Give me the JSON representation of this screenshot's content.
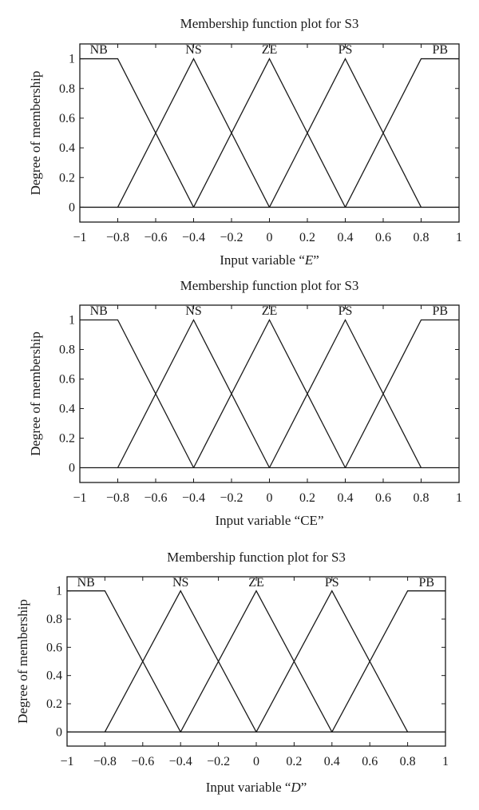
{
  "chart_data": [
    {
      "type": "line",
      "title": "Membership function plot for S3",
      "xlabel_prefix": "Input variable “",
      "xlabel_var": "E",
      "xlabel_suffix": "”",
      "xlabel_italic": true,
      "ylabel": "Degree of membership",
      "xlim": [
        -1,
        1
      ],
      "ylim": [
        -0.1,
        1.1
      ],
      "xticks": [
        "−1",
        "−0.8",
        "−0.6",
        "−0.4",
        "−0.2",
        "0",
        "0.2",
        "0.4",
        "0.6",
        "0.8",
        "1"
      ],
      "yticks": [
        "0",
        "0.2",
        "0.4",
        "0.6",
        "0.8",
        "1"
      ],
      "series": [
        {
          "name": "NB",
          "x": [
            -1,
            -0.8,
            -0.4
          ],
          "y": [
            1,
            1,
            0
          ]
        },
        {
          "name": "NS",
          "x": [
            -0.8,
            -0.4,
            0
          ],
          "y": [
            0,
            1,
            0
          ]
        },
        {
          "name": "ZE",
          "x": [
            -0.4,
            0,
            0.4
          ],
          "y": [
            0,
            1,
            0
          ]
        },
        {
          "name": "PS",
          "x": [
            0,
            0.4,
            0.8
          ],
          "y": [
            0,
            1,
            0
          ]
        },
        {
          "name": "PB",
          "x": [
            0.4,
            0.8,
            1
          ],
          "y": [
            0,
            1,
            1
          ]
        }
      ]
    },
    {
      "type": "line",
      "title": "Membership function plot for S3",
      "xlabel_prefix": "Input variable “",
      "xlabel_var": "CE",
      "xlabel_suffix": "”",
      "xlabel_italic": false,
      "ylabel": "Degree of membership",
      "xlim": [
        -1,
        1
      ],
      "ylim": [
        -0.1,
        1.1
      ],
      "xticks": [
        "−1",
        "−0.8",
        "−0.6",
        "−0.4",
        "−0.2",
        "0",
        "0.2",
        "0.4",
        "0.6",
        "0.8",
        "1"
      ],
      "yticks": [
        "0",
        "0.2",
        "0.4",
        "0.6",
        "0.8",
        "1"
      ],
      "series": [
        {
          "name": "NB",
          "x": [
            -1,
            -0.8,
            -0.4
          ],
          "y": [
            1,
            1,
            0
          ]
        },
        {
          "name": "NS",
          "x": [
            -0.8,
            -0.4,
            0
          ],
          "y": [
            0,
            1,
            0
          ]
        },
        {
          "name": "ZE",
          "x": [
            -0.4,
            0,
            0.4
          ],
          "y": [
            0,
            1,
            0
          ]
        },
        {
          "name": "PS",
          "x": [
            0,
            0.4,
            0.8
          ],
          "y": [
            0,
            1,
            0
          ]
        },
        {
          "name": "PB",
          "x": [
            0.4,
            0.8,
            1
          ],
          "y": [
            0,
            1,
            1
          ]
        }
      ]
    },
    {
      "type": "line",
      "title": "Membership function plot for S3",
      "xlabel_prefix": "Input variable “",
      "xlabel_var": "D",
      "xlabel_suffix": "”",
      "xlabel_italic": true,
      "ylabel": "Degree of membership",
      "xlim": [
        -1,
        1
      ],
      "ylim": [
        -0.1,
        1.1
      ],
      "xticks": [
        "−1",
        "−0.8",
        "−0.6",
        "−0.4",
        "−0.2",
        "0",
        "0.2",
        "0.4",
        "0.6",
        "0.8",
        "1"
      ],
      "yticks": [
        "0",
        "0.2",
        "0.4",
        "0.6",
        "0.8",
        "1"
      ],
      "series": [
        {
          "name": "NB",
          "x": [
            -1,
            -0.8,
            -0.4
          ],
          "y": [
            1,
            1,
            0
          ]
        },
        {
          "name": "NS",
          "x": [
            -0.8,
            -0.4,
            0
          ],
          "y": [
            0,
            1,
            0
          ]
        },
        {
          "name": "ZE",
          "x": [
            -0.4,
            0,
            0.4
          ],
          "y": [
            0,
            1,
            0
          ]
        },
        {
          "name": "PS",
          "x": [
            0,
            0.4,
            0.8
          ],
          "y": [
            0,
            1,
            0
          ]
        },
        {
          "name": "PB",
          "x": [
            0.4,
            0.8,
            1
          ],
          "y": [
            0,
            1,
            1
          ]
        }
      ]
    }
  ]
}
